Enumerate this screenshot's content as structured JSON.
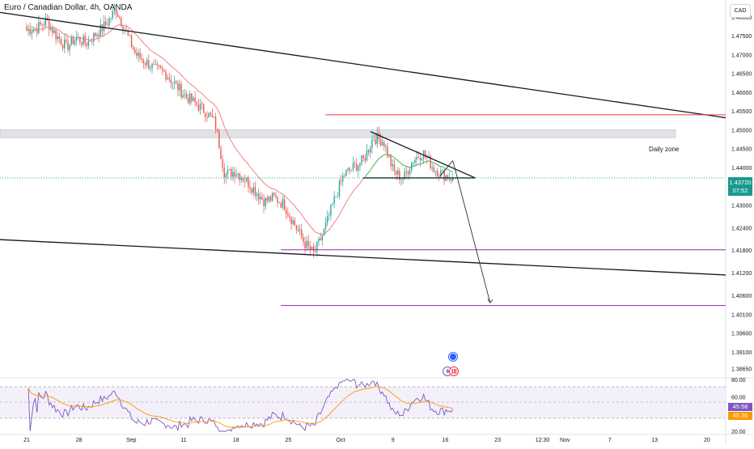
{
  "header": {
    "title": "Euro / Canadian Dollar, 4h, OANDA",
    "currency": "CAD"
  },
  "price_badge": {
    "price": "1.43720",
    "countdown": "07:52"
  },
  "rsi_badges": {
    "rsi": "45.58",
    "ma": "45.36"
  },
  "annotations": {
    "daily_zone": "Daily zone"
  },
  "colors": {
    "bull": "#26a69a",
    "bear": "#ef5350",
    "ema": "#f2827f",
    "ema_recent": "#4caf50",
    "rsi_line": "#7e57c2",
    "rsi_ma": "#ff9800",
    "purple_level": "#9c27b0",
    "red_level": "#f23645",
    "price_tag": "#1a9a8f"
  },
  "icons": [
    "alert-circle-icon",
    "lightning-icon",
    "dividend-icon"
  ],
  "chart_data": [
    {
      "type": "candlestick",
      "title": "Euro / Canadian Dollar, 4h, OANDA",
      "y_axis": {
        "ylim": [
          1.3845,
          1.4845
        ],
        "ticks": [
          "1.48000",
          "1.47500",
          "1.47000",
          "1.46500",
          "1.46000",
          "1.45500",
          "1.45000",
          "1.44500",
          "1.44000",
          "1.43500",
          "1.43000",
          "1.42400",
          "1.41800",
          "1.41200",
          "1.40600",
          "1.40100",
          "1.39600",
          "1.39100",
          "1.38650"
        ]
      },
      "x_axis": {
        "ticks": [
          "21",
          "28",
          "Sep",
          "11",
          "18",
          "25",
          "Oct",
          "9",
          "16",
          "23",
          "12:30",
          "Nov",
          "7",
          "13",
          "20"
        ]
      },
      "candles_date_range": [
        "Aug 21",
        "Oct 17"
      ],
      "approx_closes": [
        1.4765,
        1.477,
        1.479,
        1.475,
        1.472,
        1.4745,
        1.473,
        1.4755,
        1.478,
        1.482,
        1.476,
        1.47,
        1.468,
        1.466,
        1.465,
        1.462,
        1.459,
        1.457,
        1.455,
        1.452,
        1.438,
        1.439,
        1.437,
        1.434,
        1.431,
        1.432,
        1.43,
        1.425,
        1.42,
        1.417,
        1.423,
        1.431,
        1.438,
        1.44,
        1.442,
        1.448,
        1.447,
        1.439,
        1.437,
        1.442,
        1.444,
        1.44,
        1.438,
        1.4372
      ],
      "last_price": 1.4372,
      "lines": [
        {
          "name": "",
          "kind": "trendline",
          "from": [
            "Aug 16",
            1.4812
          ],
          "to": [
            "Nov 29",
            1.4532
          ]
        },
        {
          "name": "",
          "kind": "trendline",
          "from": [
            "Aug 16",
            1.4208
          ],
          "to": [
            "Nov 29",
            1.4114
          ]
        },
        {
          "kind": "triangle-upper",
          "from": [
            "Oct 6",
            1.4495
          ],
          "to": [
            "Oct 20",
            1.4372
          ]
        },
        {
          "kind": "triangle-lower",
          "from": [
            "Oct 5",
            1.4372
          ],
          "to": [
            "Oct 20",
            1.4372
          ]
        },
        {
          "kind": "horizontal",
          "color": "red",
          "y": 1.454,
          "from": "Sep 30",
          "to": "Nov 29"
        },
        {
          "kind": "horizontal",
          "color": "purple",
          "y": 1.4181,
          "from": "Sep 24",
          "to": "Nov 29"
        },
        {
          "kind": "horizontal",
          "color": "purple",
          "y": 1.4033,
          "from": "Sep 24",
          "to": "Nov 29"
        },
        {
          "kind": "projection-arrow",
          "from": [
            "Oct 17",
            1.4418
          ],
          "to": [
            "Oct 22",
            1.404
          ]
        }
      ],
      "zone": {
        "label": "Daily zone",
        "y_range": [
          1.4479,
          1.45
        ]
      }
    },
    {
      "type": "line",
      "title": "RSI",
      "y_axis": {
        "ylim": [
          20,
          80
        ],
        "ticks": [
          "80.00",
          "60.00",
          "20.00"
        ]
      },
      "band": [
        30,
        70
      ],
      "series": [
        {
          "name": "",
          "last": 45.58
        },
        {
          "name": "",
          "last": 45.36
        }
      ]
    }
  ]
}
